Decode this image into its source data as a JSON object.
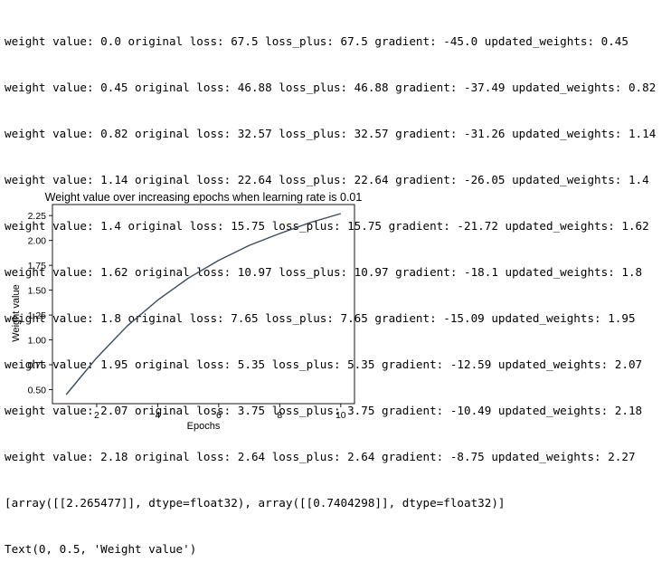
{
  "output_lines": [
    "weight value: 0.0 original loss: 67.5 loss_plus: 67.5 gradient: -45.0 updated_weights: 0.45",
    "weight value: 0.45 original loss: 46.88 loss_plus: 46.88 gradient: -37.49 updated_weights: 0.82",
    "weight value: 0.82 original loss: 32.57 loss_plus: 32.57 gradient: -31.26 updated_weights: 1.14",
    "weight value: 1.14 original loss: 22.64 loss_plus: 22.64 gradient: -26.05 updated_weights: 1.4",
    "weight value: 1.4 original loss: 15.75 loss_plus: 15.75 gradient: -21.72 updated_weights: 1.62",
    "weight value: 1.62 original loss: 10.97 loss_plus: 10.97 gradient: -18.1 updated_weights: 1.8",
    "weight value: 1.8 original loss: 7.65 loss_plus: 7.65 gradient: -15.09 updated_weights: 1.95",
    "weight value: 1.95 original loss: 5.35 loss_plus: 5.35 gradient: -12.59 updated_weights: 2.07",
    "weight value: 2.07 original loss: 3.75 loss_plus: 3.75 gradient: -10.49 updated_weights: 2.18",
    "weight value: 2.18 original loss: 2.64 loss_plus: 2.64 gradient: -8.75 updated_weights: 2.27",
    "[array([[2.265477]], dtype=float32), array([[0.7404298]], dtype=float32)]",
    "Text(0, 0.5, 'Weight value')"
  ],
  "colors": {
    "text": "#000000",
    "line": "#3a4a5c",
    "axis": "#000000",
    "background": "#ffffff"
  },
  "chart_data": {
    "type": "line",
    "title": "Weight value over increasing epochs when learning rate is 0.01",
    "xlabel": "Epochs",
    "ylabel": "Weight value",
    "x": [
      1,
      2,
      3,
      4,
      5,
      6,
      7,
      8,
      9,
      10
    ],
    "series": [
      {
        "values": [
          0.45,
          0.82,
          1.14,
          1.4,
          1.62,
          1.8,
          1.95,
          2.07,
          2.18,
          2.27
        ]
      }
    ],
    "xlim": [
      0.55,
      10.45
    ],
    "ylim": [
      0.359,
      2.361
    ],
    "xticks": [
      2,
      4,
      6,
      8,
      10
    ],
    "xtick_labels": [
      "2",
      "4",
      "6",
      "8",
      "10"
    ],
    "yticks": [
      0.5,
      0.75,
      1.0,
      1.25,
      1.5,
      1.75,
      2.0,
      2.25
    ],
    "ytick_labels": [
      "0.50",
      "0.75",
      "1.00",
      "1.25",
      "1.50",
      "1.75",
      "2.00",
      "2.25"
    ],
    "grid": false,
    "legend": "none"
  }
}
